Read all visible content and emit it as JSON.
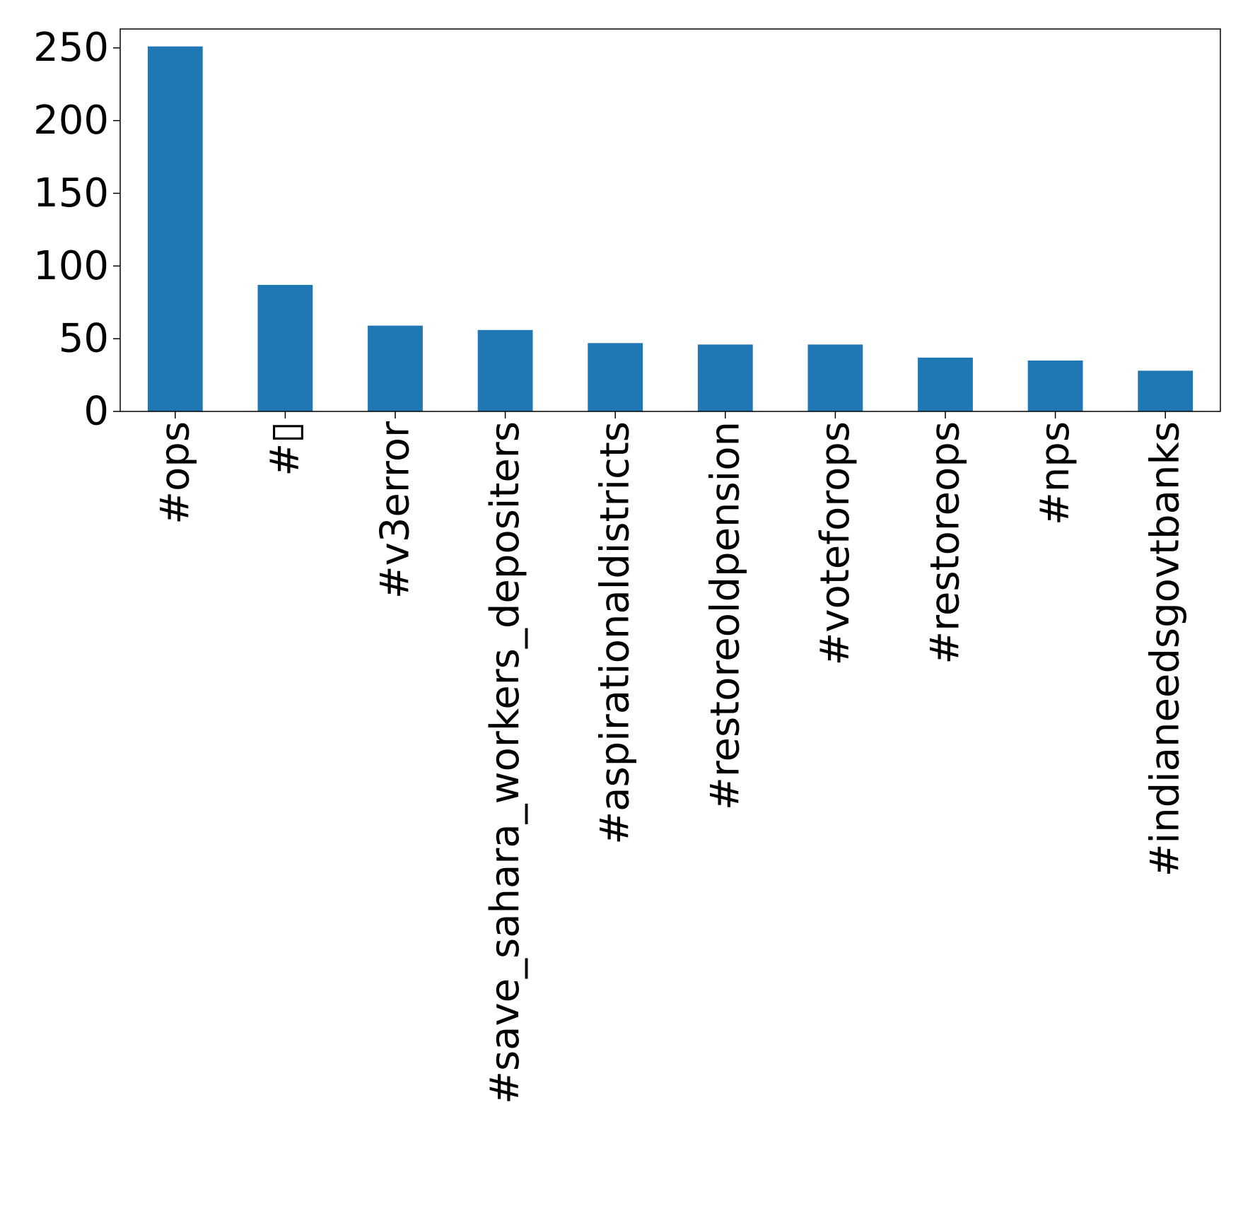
{
  "chart_data": {
    "type": "bar",
    "categories": [
      "#ops",
      "#▯",
      "#v3error",
      "#save_sahara_workers_depositers",
      "#aspirationaldistricts",
      "#restoreoldpension",
      "#voteforops",
      "#restoreops",
      "#nps",
      "#indianeedsgovtbanks"
    ],
    "values": [
      251,
      87,
      59,
      56,
      47,
      46,
      46,
      37,
      35,
      28
    ],
    "title": "",
    "xlabel": "",
    "ylabel": "",
    "ylim": [
      0,
      263
    ],
    "yticks": [
      0,
      50,
      100,
      150,
      200,
      250
    ],
    "grid": false,
    "legend": "none",
    "colors": {
      "bar": "#1f77b4",
      "axis": "#000000",
      "background": "#ffffff"
    }
  }
}
